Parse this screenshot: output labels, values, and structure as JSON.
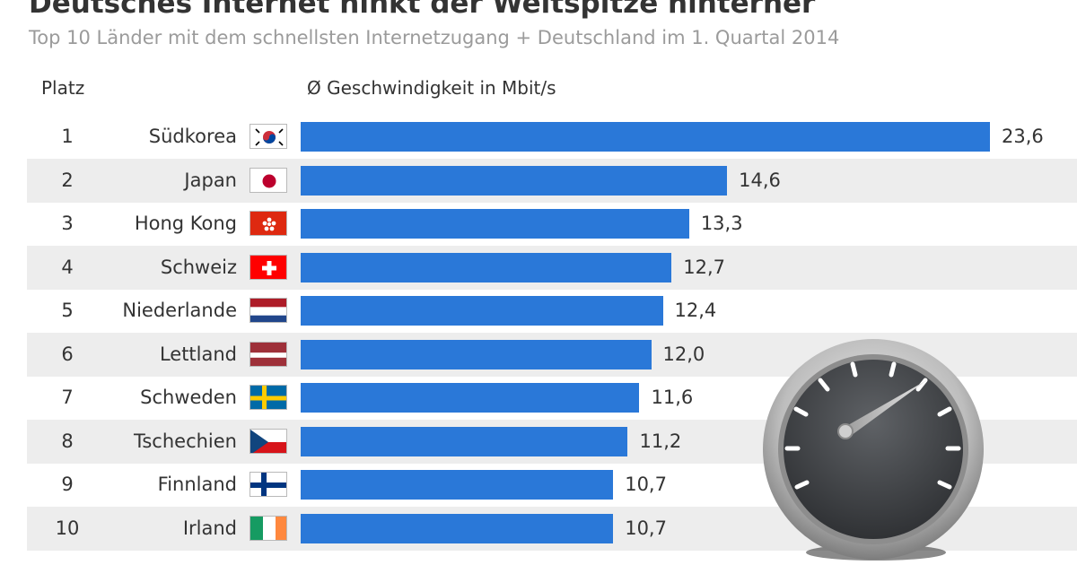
{
  "header": {
    "title": "Deutsches Internet hinkt der Weltspitze hinterher",
    "subtitle": "Top 10 Länder mit dem schnellsten Internetzugang + Deutschland im 1. Quartal 2014",
    "rank_label": "Platz",
    "value_label": "Ø Geschwindigkeit in Mbit/s"
  },
  "chart_data": {
    "type": "bar",
    "orientation": "horizontal",
    "title": "Deutsches Internet hinkt der Weltspitze hinterher",
    "subtitle": "Top 10 Länder mit dem schnellsten Internetzugang + Deutschland im 1. Quartal 2014",
    "xlabel": "Ø Geschwindigkeit in Mbit/s",
    "ylabel": "Platz",
    "xlim": [
      0,
      23.6
    ],
    "grid": false,
    "categories": [
      "Südkorea",
      "Japan",
      "Hong Kong",
      "Schweiz",
      "Niederlande",
      "Lettland",
      "Schweden",
      "Tschechien",
      "Finnland",
      "Irland"
    ],
    "ranks": [
      "1",
      "2",
      "3",
      "4",
      "5",
      "6",
      "7",
      "8",
      "9",
      "10"
    ],
    "values": [
      23.6,
      14.6,
      13.3,
      12.7,
      12.4,
      12.0,
      11.6,
      11.2,
      10.7,
      10.7
    ],
    "value_labels": [
      "23,6",
      "14,6",
      "13,3",
      "12,7",
      "12,4",
      "12,0",
      "11,6",
      "11,2",
      "10,7",
      "10,7"
    ],
    "flags": [
      "south-korea",
      "japan",
      "hong-kong",
      "switzerland",
      "netherlands",
      "latvia",
      "sweden",
      "czech-republic",
      "finland",
      "ireland"
    ],
    "bar_color": "#2a78d8"
  },
  "icons": {
    "gauge": "speedometer-icon"
  }
}
